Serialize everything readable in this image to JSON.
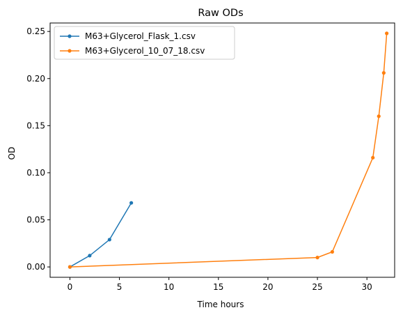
{
  "chart_data": {
    "type": "line",
    "title": "Raw ODs",
    "xlabel": "Time hours",
    "ylabel": "OD",
    "xlim": [
      -2,
      32.8
    ],
    "ylim": [
      -0.011,
      0.259
    ],
    "xticks": [
      0,
      5,
      10,
      15,
      20,
      25,
      30
    ],
    "xtick_labels": [
      "0",
      "5",
      "10",
      "15",
      "20",
      "25",
      "30"
    ],
    "yticks": [
      0.0,
      0.05,
      0.1,
      0.15,
      0.2,
      0.25
    ],
    "ytick_labels": [
      "0.00",
      "0.05",
      "0.10",
      "0.15",
      "0.20",
      "0.25"
    ],
    "grid": false,
    "legend_position": "top-left",
    "series": [
      {
        "name": "M63+Glycerol_Flask_1.csv",
        "color": "#1f77b4",
        "x": [
          0,
          2,
          4,
          6.2
        ],
        "y": [
          0.0,
          0.012,
          0.029,
          0.068
        ]
      },
      {
        "name": "M63+Glycerol_10_07_18.csv",
        "color": "#ff7f0e",
        "x": [
          0,
          25,
          26.5,
          30.6,
          31.2,
          31.7,
          32.0
        ],
        "y": [
          0.0,
          0.01,
          0.016,
          0.116,
          0.16,
          0.206,
          0.248
        ]
      }
    ]
  }
}
